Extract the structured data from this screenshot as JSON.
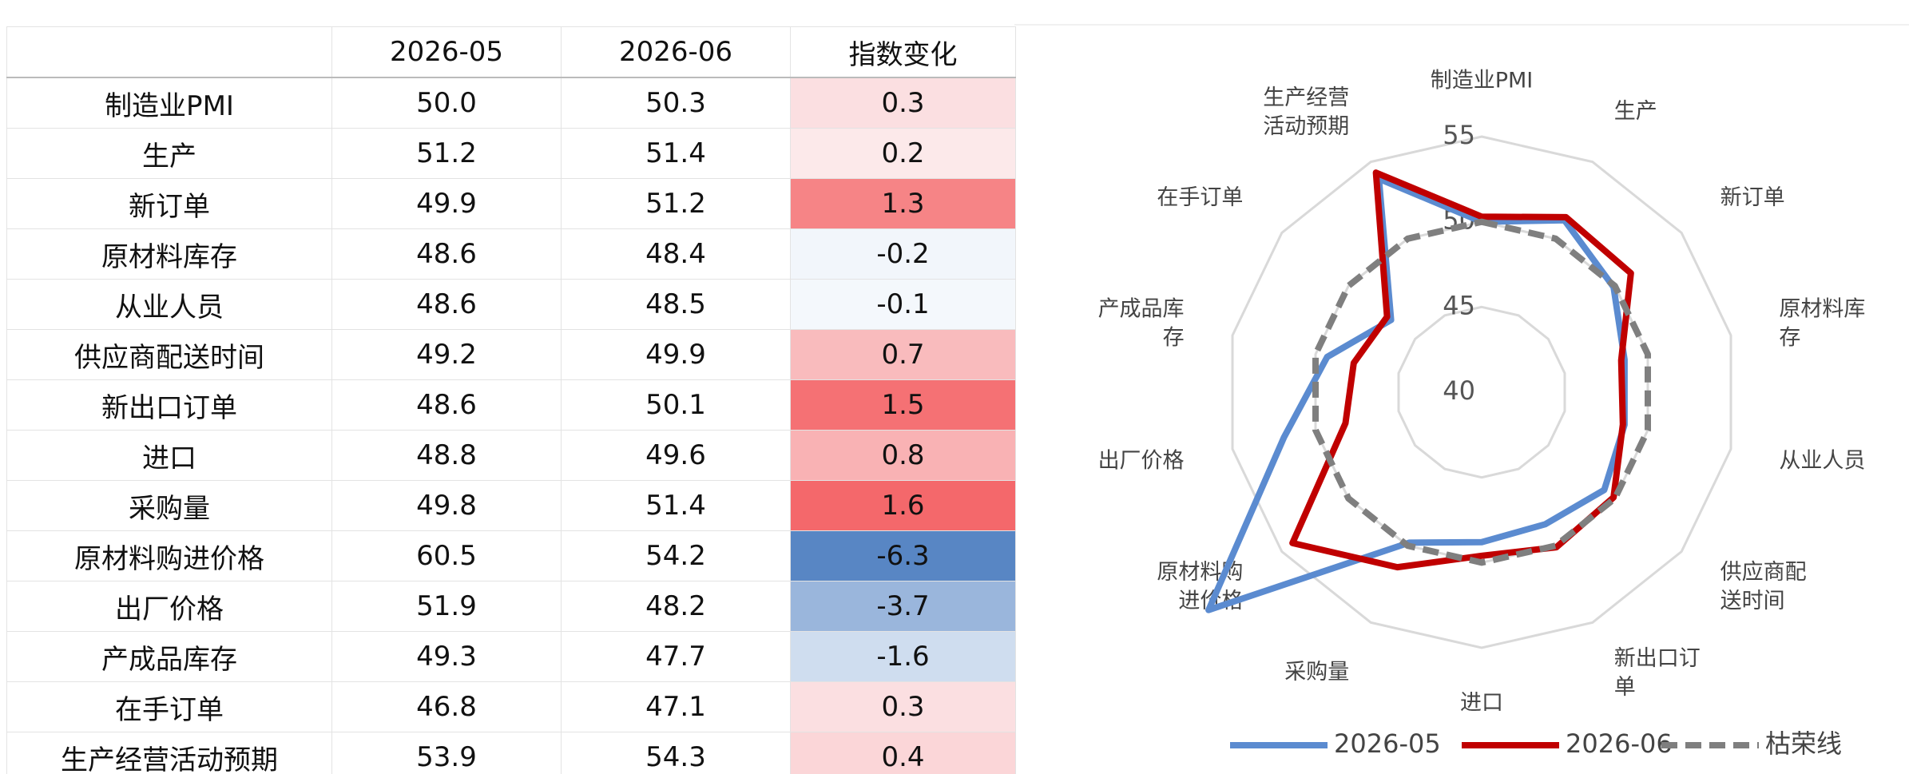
{
  "table": {
    "header": [
      "2026-05",
      "2026-06",
      "指数变化"
    ],
    "rows": [
      [
        "制造业PMI",
        "50.0",
        "50.3",
        "0.3"
      ],
      [
        "生产",
        "51.2",
        "51.4",
        "0.2"
      ],
      [
        "新订单",
        "49.9",
        "51.2",
        "1.3"
      ],
      [
        "原材料库存",
        "48.6",
        "48.4",
        "-0.2"
      ],
      [
        "从业人员",
        "48.6",
        "48.5",
        "-0.1"
      ],
      [
        "供应商配送时间",
        "49.2",
        "49.9",
        "0.7"
      ],
      [
        "新出口订单",
        "48.6",
        "50.1",
        "1.5"
      ],
      [
        "进口",
        "48.8",
        "49.6",
        "0.8"
      ],
      [
        "采购量",
        "49.8",
        "51.4",
        "1.6"
      ],
      [
        "原材料购进价格",
        "60.5",
        "54.2",
        "-6.3"
      ],
      [
        "出厂价格",
        "51.9",
        "48.2",
        "-3.7"
      ],
      [
        "产成品库存",
        "49.3",
        "47.7",
        "-1.6"
      ],
      [
        "在手订单",
        "46.8",
        "47.1",
        "0.3"
      ],
      [
        "生产经营活动预期",
        "53.9",
        "54.3",
        "0.4"
      ]
    ]
  },
  "chart_data": {
    "type": "radar",
    "categories": [
      "制造业PMI",
      "生产",
      "新订单",
      "原材料库\n存",
      "从业人员",
      "供应商配\n送时间",
      "新出口订\n单",
      "进口",
      "采购量",
      "原材料购\n进价格",
      "出厂价格",
      "产成品库\n存",
      "在手订单",
      "生产经营\n活动预期"
    ],
    "series": [
      {
        "name": "2026-05",
        "color": "#5b8bd0",
        "dash": false,
        "values": [
          50.0,
          51.2,
          49.9,
          48.6,
          48.6,
          49.2,
          48.6,
          48.8,
          49.8,
          60.5,
          51.9,
          49.3,
          46.8,
          53.9
        ]
      },
      {
        "name": "2026-06",
        "color": "#c00000",
        "dash": false,
        "values": [
          50.3,
          51.4,
          51.2,
          48.4,
          48.5,
          49.9,
          50.1,
          49.6,
          51.4,
          54.2,
          48.2,
          47.7,
          47.1,
          54.3
        ]
      },
      {
        "name": "枯荣线",
        "color": "#7f7f7f",
        "dash": true,
        "values": [
          50,
          50,
          50,
          50,
          50,
          50,
          50,
          50,
          50,
          50,
          50,
          50,
          50,
          50
        ]
      }
    ],
    "rlim": [
      40,
      55
    ],
    "rticks": [
      40,
      45,
      50,
      55
    ],
    "grid": true,
    "legend": "bottom"
  }
}
